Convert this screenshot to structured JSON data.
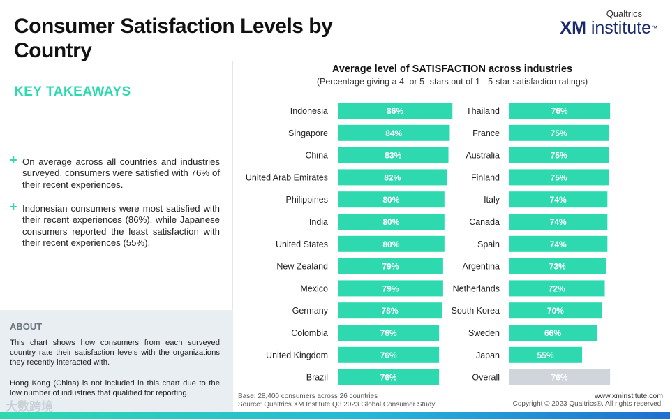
{
  "header": {
    "title": "Consumer Satisfaction Levels by Country",
    "logo_brand": "Qualtrics",
    "logo_product_bold": "XM",
    "logo_product_rest": " institute",
    "logo_tm": "™"
  },
  "takeaways": {
    "heading": "KEY TAKEAWAYS",
    "bullet_symbol": "+",
    "items": [
      "On average across all countries and industries surveyed, consumers were satisfied with 76% of their recent experiences.",
      "Indonesian consumers were most satisfied with their recent experiences (86%), while Japanese consumers reported the least satisfaction with their recent experiences (55%)."
    ]
  },
  "about": {
    "heading": "ABOUT",
    "paragraphs": [
      "This chart shows how consumers from each surveyed country rate their satisfaction levels with the organizations they recently interacted with.",
      "Hong Kong (China) is not included in this chart due to the low number of industries that qualified for reporting."
    ]
  },
  "watermark": "大数跨境",
  "footer": {
    "base": "Base: 28,400 consumers across 26 countries",
    "source": "Source: Qualtrics XM Institute Q3 2023 Global Consumer Study",
    "website": "www.xminstitute.com",
    "copyright": "Copyright © 2023 Qualtrics®. All rights reserved."
  },
  "colors": {
    "bar": "#2ed9b0",
    "overall_bar": "#cfd5db",
    "accent": "#2ed9b0"
  },
  "chart_data": {
    "type": "bar",
    "orientation": "horizontal",
    "title": "Average level of SATISFACTION across industries",
    "subtitle": "(Percentage giving a 4- or 5- stars out of 1 - 5-star satisfaction ratings)",
    "value_suffix": "%",
    "panels": [
      {
        "categories": [
          "Indonesia",
          "Singapore",
          "China",
          "United Arab Emirates",
          "Philippines",
          "India",
          "United States",
          "New Zealand",
          "Mexico",
          "Germany",
          "Colombia",
          "United Kingdom",
          "Brazil"
        ],
        "values": [
          86,
          84,
          83,
          82,
          80,
          80,
          80,
          79,
          79,
          78,
          76,
          76,
          76
        ]
      },
      {
        "categories": [
          "Thailand",
          "France",
          "Australia",
          "Finland",
          "Italy",
          "Canada",
          "Spain",
          "Argentina",
          "Netherlands",
          "South Korea",
          "Sweden",
          "Japan",
          "Overall"
        ],
        "values": [
          76,
          75,
          75,
          75,
          74,
          74,
          74,
          73,
          72,
          70,
          66,
          55,
          76
        ],
        "highlight": "Overall"
      }
    ]
  }
}
